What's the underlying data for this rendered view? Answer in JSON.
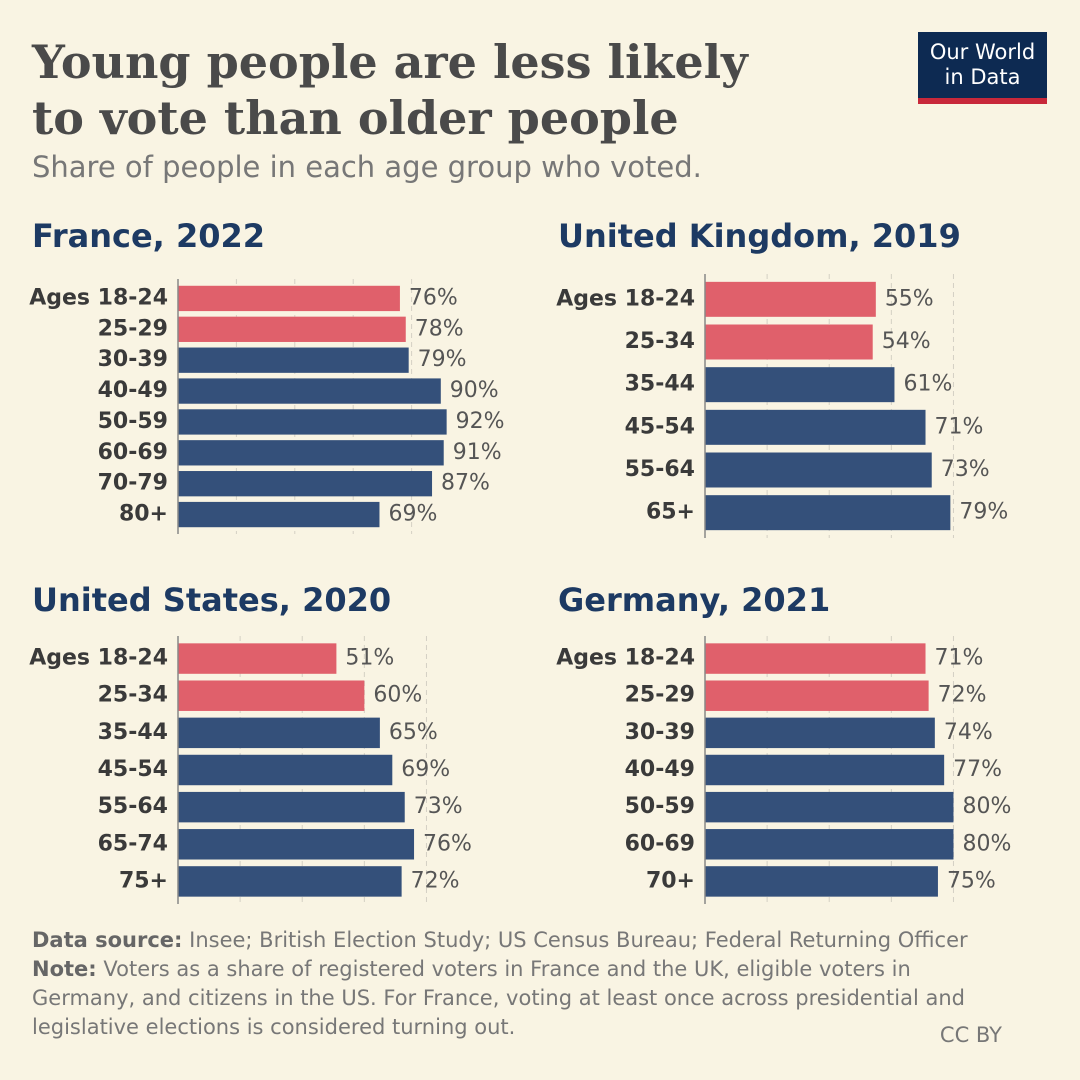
{
  "header": {
    "title": "Young people are less likely to vote than older people",
    "subtitle": "Share of people in each age group who voted.",
    "logo": "Our World in Data"
  },
  "chart_data": [
    {
      "type": "bar",
      "orientation": "horizontal",
      "title": "France, 2022",
      "categories": [
        "Ages 18-24",
        "25-29",
        "30-39",
        "40-49",
        "50-59",
        "60-69",
        "70-79",
        "80+"
      ],
      "values": [
        76,
        78,
        79,
        90,
        92,
        91,
        87,
        69
      ],
      "value_labels": [
        "76%",
        "78%",
        "79%",
        "90%",
        "92%",
        "91%",
        "87%",
        "69%"
      ],
      "colors": [
        "#e0606b",
        "#e0606b",
        "#34507a",
        "#34507a",
        "#34507a",
        "#34507a",
        "#34507a",
        "#34507a"
      ],
      "xlim": [
        0,
        100
      ],
      "xticks": [
        0,
        20,
        40,
        60,
        80
      ],
      "grid": true
    },
    {
      "type": "bar",
      "orientation": "horizontal",
      "title": "United Kingdom, 2019",
      "categories": [
        "Ages 18-24",
        "25-34",
        "35-44",
        "45-54",
        "55-64",
        "65+"
      ],
      "values": [
        55,
        54,
        61,
        71,
        73,
        79
      ],
      "value_labels": [
        "55%",
        "54%",
        "61%",
        "71%",
        "73%",
        "79%"
      ],
      "colors": [
        "#e0606b",
        "#e0606b",
        "#34507a",
        "#34507a",
        "#34507a",
        "#34507a"
      ],
      "xlim": [
        0,
        85
      ],
      "xticks": [
        0,
        20,
        40,
        60,
        80
      ],
      "grid": true
    },
    {
      "type": "bar",
      "orientation": "horizontal",
      "title": "United States, 2020",
      "categories": [
        "Ages 18-24",
        "25-34",
        "35-44",
        "45-54",
        "55-64",
        "65-74",
        "75+"
      ],
      "values": [
        51,
        60,
        65,
        69,
        73,
        76,
        72
      ],
      "value_labels": [
        "51%",
        "60%",
        "65%",
        "69%",
        "73%",
        "76%",
        "72%"
      ],
      "colors": [
        "#e0606b",
        "#e0606b",
        "#34507a",
        "#34507a",
        "#34507a",
        "#34507a",
        "#34507a"
      ],
      "xlim": [
        0,
        85
      ],
      "xticks": [
        0,
        20,
        40,
        60,
        80
      ],
      "grid": true
    },
    {
      "type": "bar",
      "orientation": "horizontal",
      "title": "Germany, 2021",
      "categories": [
        "Ages 18-24",
        "25-29",
        "30-39",
        "40-49",
        "50-59",
        "60-69",
        "70+"
      ],
      "values": [
        71,
        72,
        74,
        77,
        80,
        80,
        75
      ],
      "value_labels": [
        "71%",
        "72%",
        "74%",
        "77%",
        "80%",
        "80%",
        "75%"
      ],
      "colors": [
        "#e0606b",
        "#e0606b",
        "#34507a",
        "#34507a",
        "#34507a",
        "#34507a",
        "#34507a"
      ],
      "xlim": [
        0,
        85
      ],
      "xticks": [
        0,
        20,
        40,
        60,
        80
      ],
      "grid": true
    }
  ],
  "footer": {
    "source_label": "Data source:",
    "source": "Insee; British Election Study; US Census Bureau; Federal Returning Officer",
    "note_label": "Note:",
    "note": "Voters as a share of registered voters in France and the UK, eligible voters in Germany, and citizens in the US. For France, voting at least once across presidential and legislative elections is considered turning out.",
    "license": "CC BY"
  }
}
